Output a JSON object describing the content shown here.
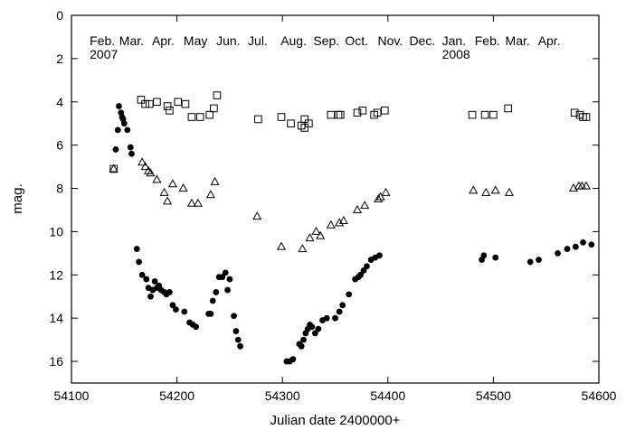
{
  "chart_data": {
    "type": "scatter",
    "title": "",
    "xlabel": "Julian date 2400000+",
    "ylabel": "mag.",
    "xlim": [
      54100,
      54600
    ],
    "ylim": [
      0,
      17
    ],
    "y_inverted": true,
    "x_ticks": [
      54100,
      54200,
      54300,
      54400,
      54500,
      54600
    ],
    "y_ticks": [
      0,
      2,
      4,
      6,
      8,
      10,
      12,
      14,
      16
    ],
    "grid": false,
    "legend": "none",
    "month_labels": [
      {
        "text": "Feb.",
        "x": 54131
      },
      {
        "text": "Mar.",
        "x": 54159
      },
      {
        "text": "Apr.",
        "x": 54190
      },
      {
        "text": "May",
        "x": 54220
      },
      {
        "text": "Jun.",
        "x": 54251
      },
      {
        "text": "Jul.",
        "x": 54281
      },
      {
        "text": "Aug.",
        "x": 54312
      },
      {
        "text": "Sep.",
        "x": 54343
      },
      {
        "text": "Oct.",
        "x": 54373
      },
      {
        "text": "Nov.",
        "x": 54404
      },
      {
        "text": "Dec.",
        "x": 54434
      },
      {
        "text": "Jan.",
        "x": 54465
      },
      {
        "text": "Feb.",
        "x": 54496
      },
      {
        "text": "Mar.",
        "x": 54525
      },
      {
        "text": "Apr.",
        "x": 54556
      }
    ],
    "year_labels": [
      {
        "text": "2007",
        "x": 54131
      },
      {
        "text": "2008",
        "x": 54465
      }
    ],
    "series": [
      {
        "marker": "filled-circle",
        "points": [
          [
            54142,
            6.2
          ],
          [
            54144,
            5.3
          ],
          [
            54145,
            4.2
          ],
          [
            54147,
            4.5
          ],
          [
            54148,
            4.7
          ],
          [
            54149,
            4.8
          ],
          [
            54150,
            5.0
          ],
          [
            54153,
            5.3
          ],
          [
            54156,
            6.1
          ],
          [
            54157,
            6.4
          ],
          [
            54162,
            10.8
          ],
          [
            54164,
            11.4
          ],
          [
            54167,
            12.0
          ],
          [
            54171,
            12.2
          ],
          [
            54173,
            12.6
          ],
          [
            54175,
            13.0
          ],
          [
            54177,
            12.7
          ],
          [
            54179,
            12.3
          ],
          [
            54181,
            12.6
          ],
          [
            54183,
            12.5
          ],
          [
            54185,
            12.7
          ],
          [
            54188,
            12.8
          ],
          [
            54190,
            12.9
          ],
          [
            54193,
            12.8
          ],
          [
            54196,
            13.4
          ],
          [
            54199,
            13.6
          ],
          [
            54207,
            13.7
          ],
          [
            54212,
            14.2
          ],
          [
            54215,
            14.3
          ],
          [
            54218,
            14.4
          ],
          [
            54230,
            13.8
          ],
          [
            54232,
            13.8
          ],
          [
            54234,
            13.2
          ],
          [
            54237,
            12.8
          ],
          [
            54240,
            12.1
          ],
          [
            54243,
            12.1
          ],
          [
            54246,
            11.9
          ],
          [
            54248,
            12.7
          ],
          [
            54250,
            12.2
          ],
          [
            54254,
            13.9
          ],
          [
            54256,
            14.6
          ],
          [
            54258,
            15.0
          ],
          [
            54260,
            15.3
          ],
          [
            54304,
            16.0
          ],
          [
            54307,
            16.0
          ],
          [
            54310,
            15.9
          ],
          [
            54316,
            15.2
          ],
          [
            54318,
            15.3
          ],
          [
            54320,
            15.0
          ],
          [
            54322,
            14.7
          ],
          [
            54324,
            14.5
          ],
          [
            54326,
            14.3
          ],
          [
            54328,
            14.4
          ],
          [
            54331,
            14.7
          ],
          [
            54334,
            14.5
          ],
          [
            54338,
            14.1
          ],
          [
            54342,
            14.0
          ],
          [
            54350,
            14.0
          ],
          [
            54354,
            13.7
          ],
          [
            54357,
            13.4
          ],
          [
            54363,
            12.9
          ],
          [
            54369,
            12.2
          ],
          [
            54372,
            12.1
          ],
          [
            54374,
            12.0
          ],
          [
            54377,
            11.8
          ],
          [
            54380,
            11.6
          ],
          [
            54384,
            11.3
          ],
          [
            54388,
            11.2
          ],
          [
            54392,
            11.1
          ],
          [
            54489,
            11.3
          ],
          [
            54491,
            11.1
          ],
          [
            54502,
            11.2
          ],
          [
            54535,
            11.4
          ],
          [
            54543,
            11.3
          ],
          [
            54561,
            11.0
          ],
          [
            54570,
            10.8
          ],
          [
            54578,
            10.7
          ],
          [
            54585,
            10.5
          ],
          [
            54593,
            10.6
          ]
        ]
      },
      {
        "marker": "open-triangle",
        "points": [
          [
            54140,
            7.1
          ],
          [
            54167,
            6.8
          ],
          [
            54170,
            7.0
          ],
          [
            54173,
            7.2
          ],
          [
            54175,
            7.3
          ],
          [
            54181,
            7.6
          ],
          [
            54188,
            8.2
          ],
          [
            54191,
            8.6
          ],
          [
            54196,
            7.8
          ],
          [
            54206,
            8.0
          ],
          [
            54214,
            8.7
          ],
          [
            54220,
            8.7
          ],
          [
            54232,
            8.3
          ],
          [
            54236,
            7.7
          ],
          [
            54276,
            9.3
          ],
          [
            54299,
            10.7
          ],
          [
            54319,
            10.8
          ],
          [
            54326,
            10.3
          ],
          [
            54332,
            10.0
          ],
          [
            54336,
            10.2
          ],
          [
            54346,
            9.7
          ],
          [
            54354,
            9.6
          ],
          [
            54358,
            9.5
          ],
          [
            54371,
            9.0
          ],
          [
            54378,
            8.8
          ],
          [
            54391,
            8.5
          ],
          [
            54393,
            8.4
          ],
          [
            54398,
            8.2
          ],
          [
            54481,
            8.1
          ],
          [
            54493,
            8.2
          ],
          [
            54502,
            8.1
          ],
          [
            54515,
            8.2
          ],
          [
            54576,
            8.0
          ],
          [
            54581,
            7.9
          ],
          [
            54584,
            7.9
          ],
          [
            54588,
            7.9
          ]
        ]
      },
      {
        "marker": "open-square",
        "points": [
          [
            54140,
            7.1
          ],
          [
            54166,
            3.9
          ],
          [
            54170,
            4.1
          ],
          [
            54174,
            4.1
          ],
          [
            54181,
            4.0
          ],
          [
            54191,
            4.2
          ],
          [
            54193,
            4.4
          ],
          [
            54201,
            4.0
          ],
          [
            54208,
            4.1
          ],
          [
            54214,
            4.7
          ],
          [
            54222,
            4.7
          ],
          [
            54231,
            4.6
          ],
          [
            54235,
            4.3
          ],
          [
            54238,
            3.7
          ],
          [
            54277,
            4.8
          ],
          [
            54299,
            4.7
          ],
          [
            54308,
            5.0
          ],
          [
            54318,
            5.1
          ],
          [
            54321,
            5.2
          ],
          [
            54321,
            4.8
          ],
          [
            54325,
            5.0
          ],
          [
            54346,
            4.6
          ],
          [
            54353,
            4.6
          ],
          [
            54355,
            4.6
          ],
          [
            54371,
            4.5
          ],
          [
            54376,
            4.4
          ],
          [
            54387,
            4.6
          ],
          [
            54390,
            4.5
          ],
          [
            54397,
            4.4
          ],
          [
            54480,
            4.6
          ],
          [
            54492,
            4.6
          ],
          [
            54500,
            4.6
          ],
          [
            54514,
            4.3
          ],
          [
            54577,
            4.5
          ],
          [
            54582,
            4.6
          ],
          [
            54585,
            4.7
          ],
          [
            54588,
            4.7
          ]
        ]
      }
    ]
  }
}
